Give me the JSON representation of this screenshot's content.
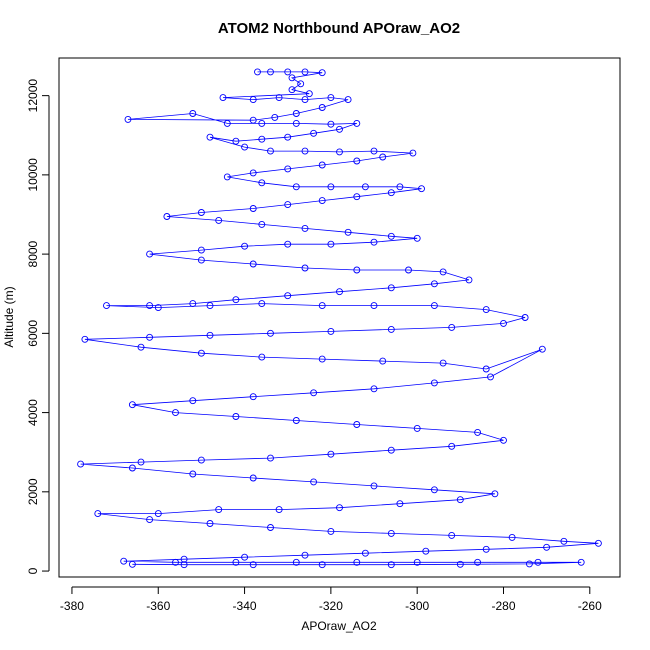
{
  "chart_data": {
    "type": "scatter",
    "title": "ATOM2 Northbound APOraw_AO2",
    "xlabel": "APOraw_AO2",
    "ylabel": "Altitude (m)",
    "xlim": [
      -383,
      -253
    ],
    "ylim": [
      -150,
      12950
    ],
    "xticks": [
      -380,
      -360,
      -340,
      -320,
      -300,
      -280,
      -260
    ],
    "yticks": [
      0,
      2000,
      4000,
      6000,
      8000,
      10000,
      12000
    ],
    "marker": "open-circle",
    "connected": true,
    "grid": false,
    "colors": {
      "series": "#0000ff",
      "axes": "#000000",
      "background": "#ffffff"
    },
    "series": [
      {
        "points": [
          [
            -337,
            12600
          ],
          [
            -334,
            12600
          ],
          [
            -330,
            12600
          ],
          [
            -326,
            12600
          ],
          [
            -322,
            12580
          ],
          [
            -329,
            12450
          ],
          [
            -327,
            12300
          ],
          [
            -329,
            12150
          ],
          [
            -325,
            12050
          ],
          [
            -345,
            11950
          ],
          [
            -338,
            11900
          ],
          [
            -332,
            11950
          ],
          [
            -326,
            11900
          ],
          [
            -320,
            11950
          ],
          [
            -316,
            11900
          ],
          [
            -322,
            11700
          ],
          [
            -328,
            11550
          ],
          [
            -333,
            11450
          ],
          [
            -338,
            11380
          ],
          [
            -367,
            11400
          ],
          [
            -352,
            11550
          ],
          [
            -344,
            11300
          ],
          [
            -336,
            11300
          ],
          [
            -328,
            11300
          ],
          [
            -320,
            11280
          ],
          [
            -314,
            11300
          ],
          [
            -318,
            11150
          ],
          [
            -324,
            11050
          ],
          [
            -330,
            10950
          ],
          [
            -336,
            10900
          ],
          [
            -342,
            10850
          ],
          [
            -348,
            10950
          ],
          [
            -340,
            10700
          ],
          [
            -334,
            10600
          ],
          [
            -326,
            10600
          ],
          [
            -318,
            10580
          ],
          [
            -310,
            10600
          ],
          [
            -301,
            10550
          ],
          [
            -308,
            10450
          ],
          [
            -314,
            10350
          ],
          [
            -322,
            10250
          ],
          [
            -330,
            10150
          ],
          [
            -338,
            10050
          ],
          [
            -344,
            9950
          ],
          [
            -336,
            9800
          ],
          [
            -328,
            9700
          ],
          [
            -320,
            9700
          ],
          [
            -312,
            9700
          ],
          [
            -304,
            9700
          ],
          [
            -299,
            9650
          ],
          [
            -306,
            9550
          ],
          [
            -314,
            9450
          ],
          [
            -322,
            9350
          ],
          [
            -330,
            9250
          ],
          [
            -338,
            9150
          ],
          [
            -350,
            9050
          ],
          [
            -358,
            8950
          ],
          [
            -346,
            8850
          ],
          [
            -336,
            8750
          ],
          [
            -326,
            8650
          ],
          [
            -316,
            8550
          ],
          [
            -306,
            8450
          ],
          [
            -300,
            8400
          ],
          [
            -310,
            8300
          ],
          [
            -320,
            8250
          ],
          [
            -330,
            8250
          ],
          [
            -340,
            8200
          ],
          [
            -350,
            8100
          ],
          [
            -362,
            8000
          ],
          [
            -350,
            7850
          ],
          [
            -338,
            7750
          ],
          [
            -326,
            7650
          ],
          [
            -314,
            7600
          ],
          [
            -302,
            7600
          ],
          [
            -294,
            7550
          ],
          [
            -288,
            7350
          ],
          [
            -296,
            7250
          ],
          [
            -306,
            7150
          ],
          [
            -318,
            7050
          ],
          [
            -330,
            6950
          ],
          [
            -342,
            6850
          ],
          [
            -352,
            6750
          ],
          [
            -362,
            6700
          ],
          [
            -372,
            6700
          ],
          [
            -360,
            6650
          ],
          [
            -348,
            6700
          ],
          [
            -336,
            6750
          ],
          [
            -322,
            6700
          ],
          [
            -310,
            6700
          ],
          [
            -296,
            6700
          ],
          [
            -284,
            6600
          ],
          [
            -275,
            6400
          ],
          [
            -280,
            6250
          ],
          [
            -292,
            6150
          ],
          [
            -306,
            6100
          ],
          [
            -320,
            6050
          ],
          [
            -334,
            6000
          ],
          [
            -348,
            5950
          ],
          [
            -362,
            5900
          ],
          [
            -377,
            5850
          ],
          [
            -364,
            5650
          ],
          [
            -350,
            5500
          ],
          [
            -336,
            5400
          ],
          [
            -322,
            5350
          ],
          [
            -308,
            5300
          ],
          [
            -294,
            5250
          ],
          [
            -284,
            5100
          ],
          [
            -271,
            5600
          ],
          [
            -283,
            4900
          ],
          [
            -296,
            4750
          ],
          [
            -310,
            4600
          ],
          [
            -324,
            4500
          ],
          [
            -338,
            4400
          ],
          [
            -352,
            4300
          ],
          [
            -366,
            4200
          ],
          [
            -356,
            4000
          ],
          [
            -342,
            3900
          ],
          [
            -328,
            3800
          ],
          [
            -314,
            3700
          ],
          [
            -300,
            3600
          ],
          [
            -286,
            3500
          ],
          [
            -280,
            3300
          ],
          [
            -292,
            3150
          ],
          [
            -306,
            3050
          ],
          [
            -320,
            2950
          ],
          [
            -334,
            2850
          ],
          [
            -350,
            2800
          ],
          [
            -364,
            2750
          ],
          [
            -378,
            2700
          ],
          [
            -366,
            2600
          ],
          [
            -352,
            2450
          ],
          [
            -338,
            2350
          ],
          [
            -324,
            2250
          ],
          [
            -310,
            2150
          ],
          [
            -296,
            2050
          ],
          [
            -282,
            1950
          ],
          [
            -290,
            1800
          ],
          [
            -304,
            1700
          ],
          [
            -318,
            1600
          ],
          [
            -332,
            1550
          ],
          [
            -346,
            1550
          ],
          [
            -360,
            1450
          ],
          [
            -374,
            1450
          ],
          [
            -362,
            1300
          ],
          [
            -348,
            1200
          ],
          [
            -334,
            1100
          ],
          [
            -320,
            1000
          ],
          [
            -306,
            950
          ],
          [
            -292,
            900
          ],
          [
            -278,
            850
          ],
          [
            -266,
            750
          ],
          [
            -258,
            700
          ],
          [
            -270,
            600
          ],
          [
            -284,
            550
          ],
          [
            -298,
            500
          ],
          [
            -312,
            450
          ],
          [
            -326,
            400
          ],
          [
            -340,
            350
          ],
          [
            -354,
            300
          ],
          [
            -368,
            250
          ],
          [
            -356,
            220
          ],
          [
            -342,
            220
          ],
          [
            -328,
            220
          ],
          [
            -314,
            220
          ],
          [
            -300,
            220
          ],
          [
            -286,
            220
          ],
          [
            -272,
            220
          ],
          [
            -262,
            220
          ],
          [
            -274,
            180
          ],
          [
            -290,
            170
          ],
          [
            -306,
            160
          ],
          [
            -322,
            160
          ],
          [
            -338,
            160
          ],
          [
            -354,
            160
          ],
          [
            -366,
            170
          ]
        ]
      }
    ]
  }
}
